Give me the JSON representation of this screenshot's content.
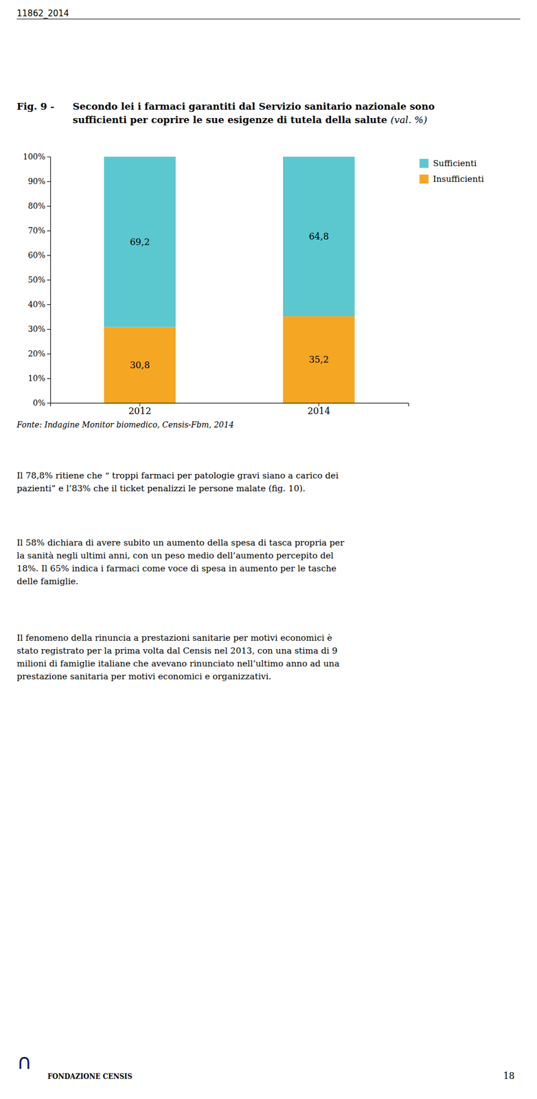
{
  "header": "11862_2014",
  "fig_label": "Fig. 9 -",
  "source": "Fonte: Indagine Monitor biomedico, Censis-Fbm, 2014",
  "paragraphs": [
    "Il 78,8% ritiene che “ troppi farmaci per patologie gravi siano a carico dei\npazienti” e l’83% che il ticket penalizzi le persone malate (fig. 10).",
    "Il 58% dichiara di avere subito un aumento della spesa di tasca propria per\nla sanità negli ultimi anni, con un peso medio dell’aumento percepito del\n18%. Il 65% indica i farmaci come voce di spesa in aumento per le tasche\ndelle famiglie.",
    "Il fenomeno della rinuncia a prestazioni sanitarie per motivi economici è\nstato registrato per la prima volta dal Censis nel 2013, con una stima di 9\nmilioni di famiglie italiane che avevano rinunciato nell’ultimo anno ad una\nprestazione sanitaria per motivi economici e organizzativi."
  ],
  "logo": "∩",
  "footer_left": "FONDAZIONE CENSIS",
  "footer_right": "18",
  "chart_data": {
    "type": "bar",
    "title": "Secondo lei i farmaci garantiti dal Servizio sanitario nazionale sono\nsufficienti per coprire le sue esigenze di tutela della salute",
    "subtitle": "(val. %)",
    "categories": [
      "2012",
      "2014"
    ],
    "stacked": true,
    "data_labels": true,
    "legend": "right",
    "grid": false,
    "series": [
      {
        "name": "Insufficienti",
        "color": "#F5A623",
        "values": [
          30.8,
          35.2
        ],
        "value_labels": [
          "30,8",
          "35,2"
        ]
      },
      {
        "name": "Sufficienti",
        "color": "#5BC8D0",
        "values": [
          69.2,
          64.8
        ],
        "value_labels": [
          "69,2",
          "64,8"
        ]
      }
    ],
    "ylim": [
      0,
      100
    ],
    "yticks": [
      {
        "value": 0,
        "label": "0%"
      },
      {
        "value": 10,
        "label": "10%"
      },
      {
        "value": 20,
        "label": "20%"
      },
      {
        "value": 30,
        "label": "30%"
      },
      {
        "value": 40,
        "label": "40%"
      },
      {
        "value": 50,
        "label": "50%"
      },
      {
        "value": 60,
        "label": "60%"
      },
      {
        "value": 70,
        "label": "70%"
      },
      {
        "value": 80,
        "label": "80%"
      },
      {
        "value": 90,
        "label": "90%"
      },
      {
        "value": 100,
        "label": "100%"
      }
    ]
  }
}
